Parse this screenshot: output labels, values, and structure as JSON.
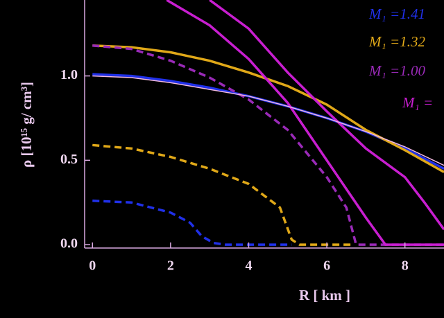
{
  "chart_data": {
    "type": "line",
    "x_label": "R [ km ]",
    "y_label": "ρ [10¹⁵ g/ cm³]",
    "xlim": [
      -0.2,
      9.0
    ],
    "ylim": [
      -0.02,
      1.45
    ],
    "xticks": [
      0,
      2,
      4,
      6,
      8
    ],
    "yticks": [
      {
        "value": 0,
        "label": "0.0"
      },
      {
        "value": 0.5,
        "label": "0.5"
      },
      {
        "value": 1,
        "label": "1.0"
      }
    ],
    "series": [
      {
        "name": "M₁ =1.41",
        "color": "#2030e8",
        "style": "solid",
        "x": [
          0,
          1,
          2,
          3,
          4,
          5,
          6,
          7,
          8,
          9
        ],
        "values": [
          1.01,
          1.0,
          0.97,
          0.93,
          0.88,
          0.82,
          0.75,
          0.67,
          0.57,
          0.45
        ]
      },
      {
        "name": "M₁ =1.32",
        "color": "#e0a818",
        "style": "solid",
        "x": [
          0,
          1,
          2,
          3,
          4,
          5,
          6,
          7,
          8,
          9
        ],
        "values": [
          1.18,
          1.17,
          1.14,
          1.09,
          1.02,
          0.94,
          0.83,
          0.68,
          0.56,
          0.43
        ]
      },
      {
        "name": "M₁ =1.00",
        "color": "#9a2ab8",
        "style": "dashed",
        "x": [
          0,
          1,
          2,
          3,
          4,
          5,
          6,
          6.5,
          6.75,
          9
        ],
        "values": [
          1.18,
          1.16,
          1.09,
          0.99,
          0.86,
          0.68,
          0.4,
          0.22,
          0.0,
          0.0
        ]
      },
      {
        "name": "M₁ =",
        "color": "#c81ed0",
        "style": "solid",
        "x": [
          1.9,
          3,
          4,
          5,
          6,
          7,
          7.5,
          9
        ],
        "values": [
          1.45,
          1.3,
          1.1,
          0.84,
          0.5,
          0.16,
          0.0,
          0.0
        ]
      },
      {
        "color": "#c81ed0",
        "style": "solid",
        "x": [
          3,
          4,
          5,
          6,
          7,
          8,
          8.5,
          9
        ],
        "values": [
          1.45,
          1.28,
          1.02,
          0.79,
          0.57,
          0.4,
          0.25,
          0.09
        ]
      },
      {
        "color": "#f0b8e0",
        "style": "thin",
        "x": [
          0,
          1,
          2,
          3,
          4,
          5,
          6,
          7,
          8,
          9
        ],
        "values": [
          1.0,
          0.99,
          0.96,
          0.92,
          0.88,
          0.82,
          0.75,
          0.67,
          0.58,
          0.47
        ]
      },
      {
        "color": "#e0a818",
        "style": "dashed",
        "x": [
          0,
          1,
          2,
          3,
          4,
          4.8,
          5.1,
          5.3,
          6.7
        ],
        "values": [
          0.59,
          0.57,
          0.52,
          0.45,
          0.36,
          0.22,
          0.03,
          0.0,
          0.0
        ]
      },
      {
        "color": "#2030e8",
        "style": "dashed",
        "x": [
          0,
          1,
          2,
          2.5,
          2.8,
          3.1,
          3.4,
          5.1
        ],
        "values": [
          0.26,
          0.25,
          0.19,
          0.13,
          0.05,
          0.01,
          0.0,
          0.0
        ]
      }
    ]
  }
}
